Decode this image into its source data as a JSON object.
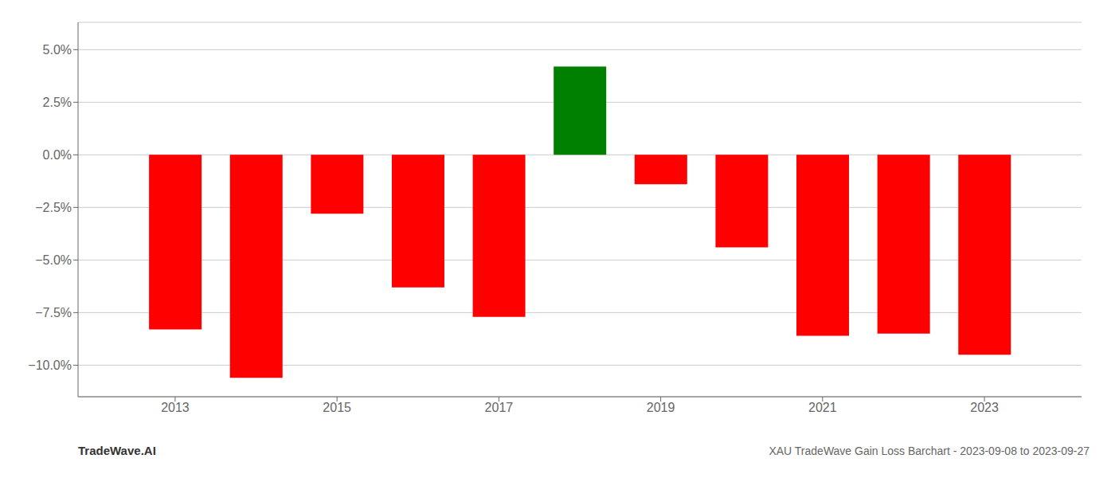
{
  "chart_data": {
    "type": "bar",
    "x": [
      2013,
      2014,
      2015,
      2016,
      2017,
      2018,
      2019,
      2020,
      2021,
      2022,
      2023
    ],
    "values": [
      -0.083,
      -0.106,
      -0.028,
      -0.063,
      -0.077,
      0.042,
      -0.014,
      -0.044,
      -0.086,
      -0.085,
      -0.095
    ],
    "colors": [
      "#ff0000",
      "#ff0000",
      "#ff0000",
      "#ff0000",
      "#ff0000",
      "#008000",
      "#ff0000",
      "#ff0000",
      "#ff0000",
      "#ff0000",
      "#ff0000"
    ],
    "xlim": [
      2011.8,
      2024.2
    ],
    "xticks": [
      2013,
      2015,
      2017,
      2019,
      2021,
      2023
    ],
    "ylim": [
      -0.115,
      0.063
    ],
    "yticks": [
      {
        "value": 0.05,
        "label": "5.0%"
      },
      {
        "value": 0.025,
        "label": "2.5%"
      },
      {
        "value": 0.0,
        "label": "0.0%"
      },
      {
        "value": -0.025,
        "label": "−2.5%"
      },
      {
        "value": -0.05,
        "label": "−5.0%"
      },
      {
        "value": -0.075,
        "label": "−7.5%"
      },
      {
        "value": -0.1,
        "label": "−10.0%"
      }
    ],
    "grid": true,
    "annotations": [
      "TradeWave.AI",
      "XAU TradeWave Gain Loss Barchart - 2023-09-08 to 2023-09-27"
    ]
  }
}
